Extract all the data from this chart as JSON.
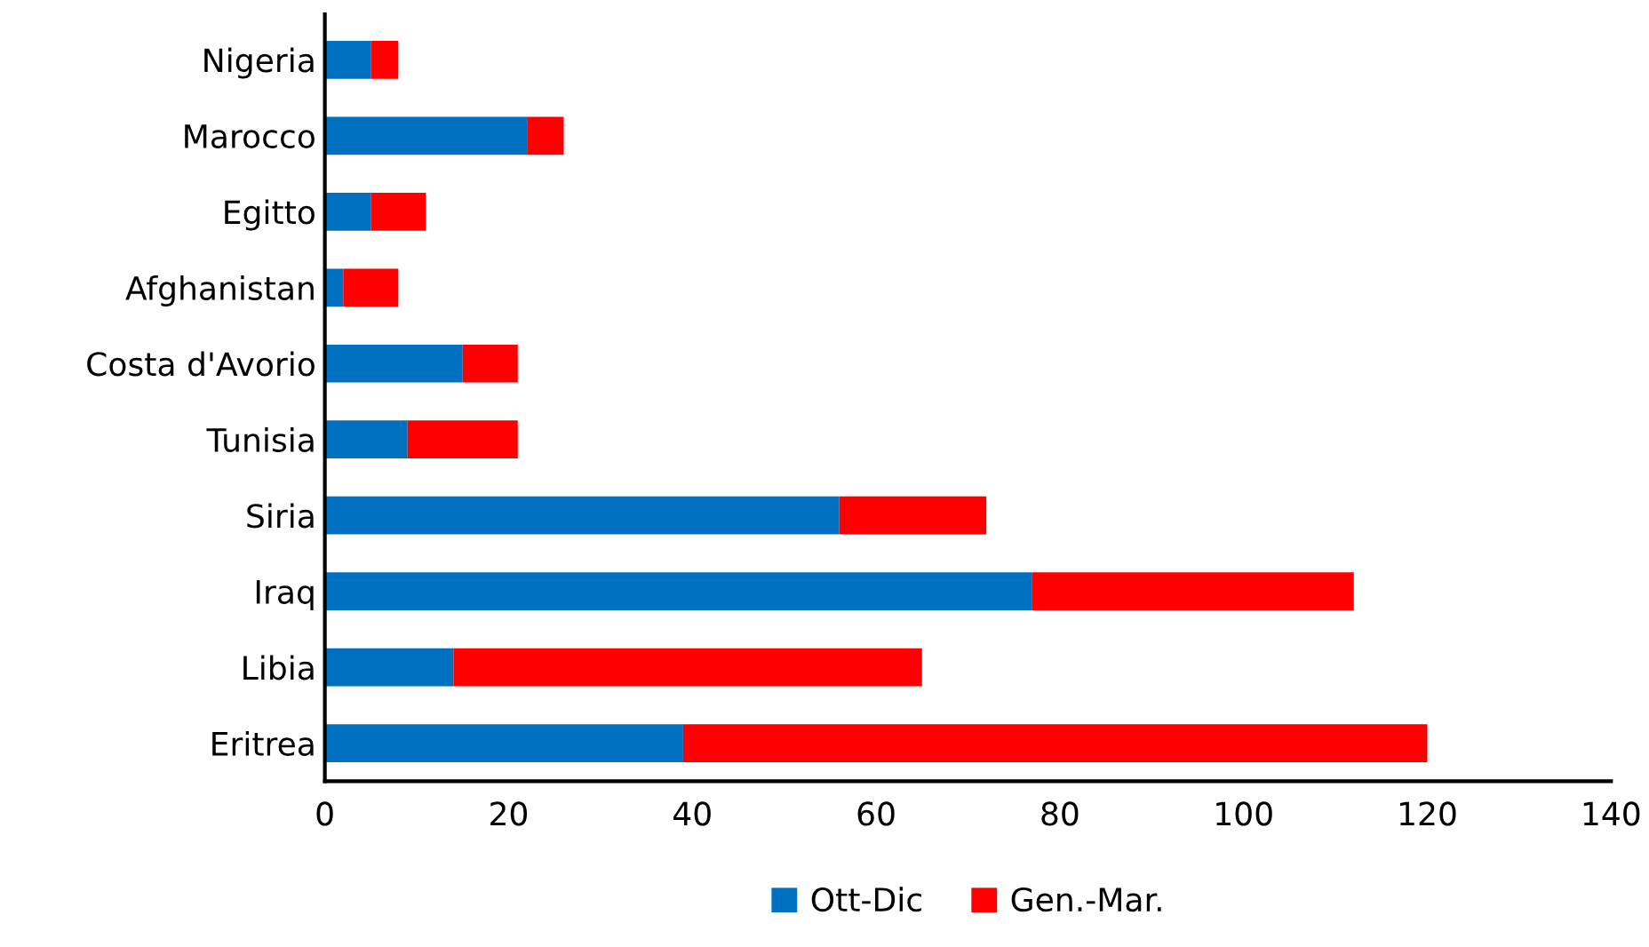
{
  "chart_data": {
    "type": "bar",
    "orientation": "horizontal",
    "stacked": true,
    "categories": [
      "Nigeria",
      "Marocco",
      "Egitto",
      "Afghanistan",
      "Costa d'Avorio",
      "Tunisia",
      "Siria",
      "Iraq",
      "Libia",
      "Eritrea"
    ],
    "series": [
      {
        "name": "Ott-Dic",
        "color": "#0070c0",
        "values": [
          5,
          22,
          5,
          2,
          15,
          9,
          56,
          77,
          14,
          39
        ]
      },
      {
        "name": "Gen.-Mar.",
        "color": "#ff0000",
        "values": [
          3,
          4,
          6,
          6,
          6,
          12,
          16,
          35,
          51,
          81
        ]
      }
    ],
    "xlim": [
      0,
      140
    ],
    "xticks": [
      0,
      20,
      40,
      60,
      80,
      100,
      120,
      140
    ],
    "grid": false,
    "legend": "bottom"
  }
}
